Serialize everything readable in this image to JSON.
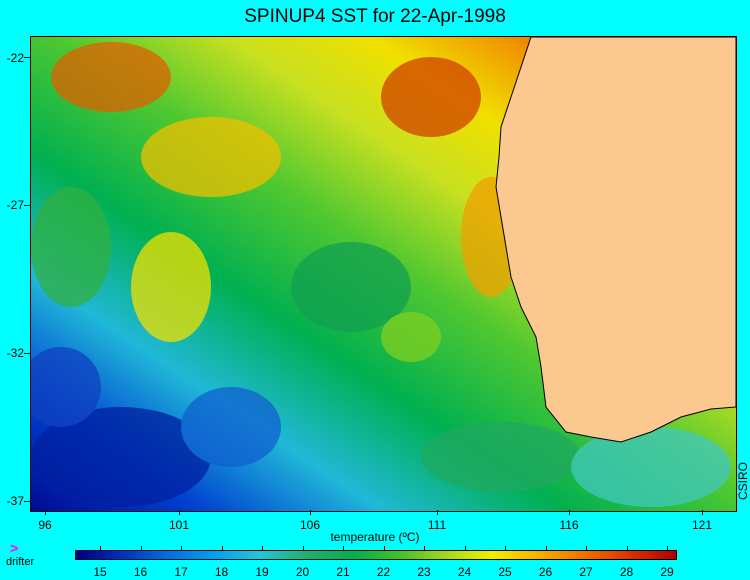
{
  "title": "SPINUP4 SST for 22-Apr-1998",
  "map": {
    "lat_ticks": [
      "-22",
      "-27",
      "-32",
      "-37"
    ],
    "lon_ticks": [
      "96",
      "101",
      "106",
      "111",
      "116",
      "121"
    ],
    "credit": "CSIRO",
    "land_color": "#fbc88f"
  },
  "colorbar": {
    "label": "temperature (ºC)",
    "ticks": [
      "15",
      "16",
      "17",
      "18",
      "19",
      "20",
      "21",
      "22",
      "23",
      "24",
      "25",
      "26",
      "27",
      "28",
      "29"
    ],
    "colors": [
      "#000080",
      "#0030c0",
      "#0070e0",
      "#00a0f0",
      "#20c8d8",
      "#20b070",
      "#00b050",
      "#40c030",
      "#a0d820",
      "#f0f000",
      "#f8b000",
      "#f07000",
      "#e03000",
      "#b00000"
    ]
  },
  "legend": {
    "drifter_symbol": ">",
    "drifter_label": "drifter"
  }
}
